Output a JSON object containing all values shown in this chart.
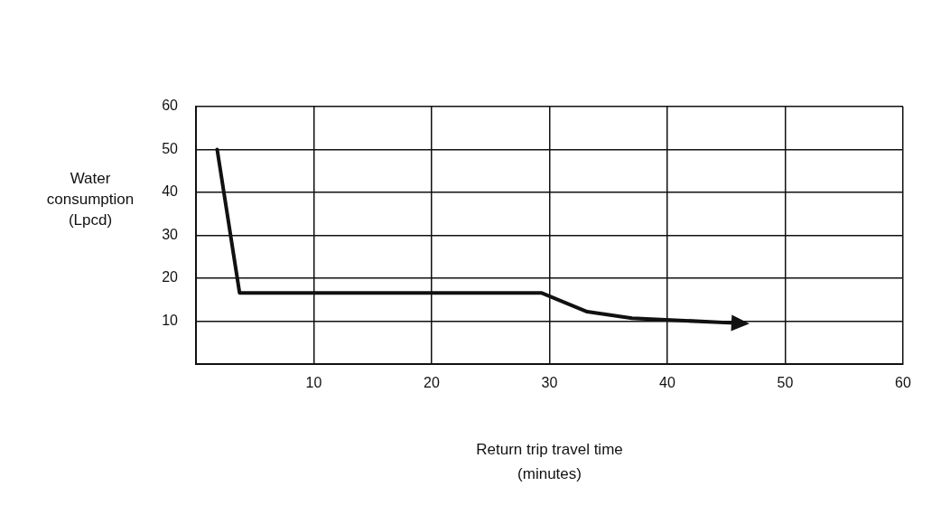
{
  "chart_data": {
    "type": "line",
    "xlabel": "Return trip travel time (minutes)",
    "ylabel": "Water consumption (Lpcd)",
    "x": [
      1.8,
      3.7,
      29.3,
      33.2,
      37,
      46.2
    ],
    "series": [
      {
        "color": "#111111",
        "values": [
          50,
          16.6,
          16.6,
          12.2,
          10.7,
          9.5
        ]
      }
    ],
    "xlim": [
      0,
      60
    ],
    "xticks": [
      10,
      20,
      30,
      40,
      50,
      60
    ],
    "ylim": [
      0,
      60
    ],
    "yticks": [
      10,
      20,
      30,
      40,
      50,
      60
    ],
    "grid": true,
    "legend": false,
    "marker": "none",
    "line_style": "solid"
  }
}
